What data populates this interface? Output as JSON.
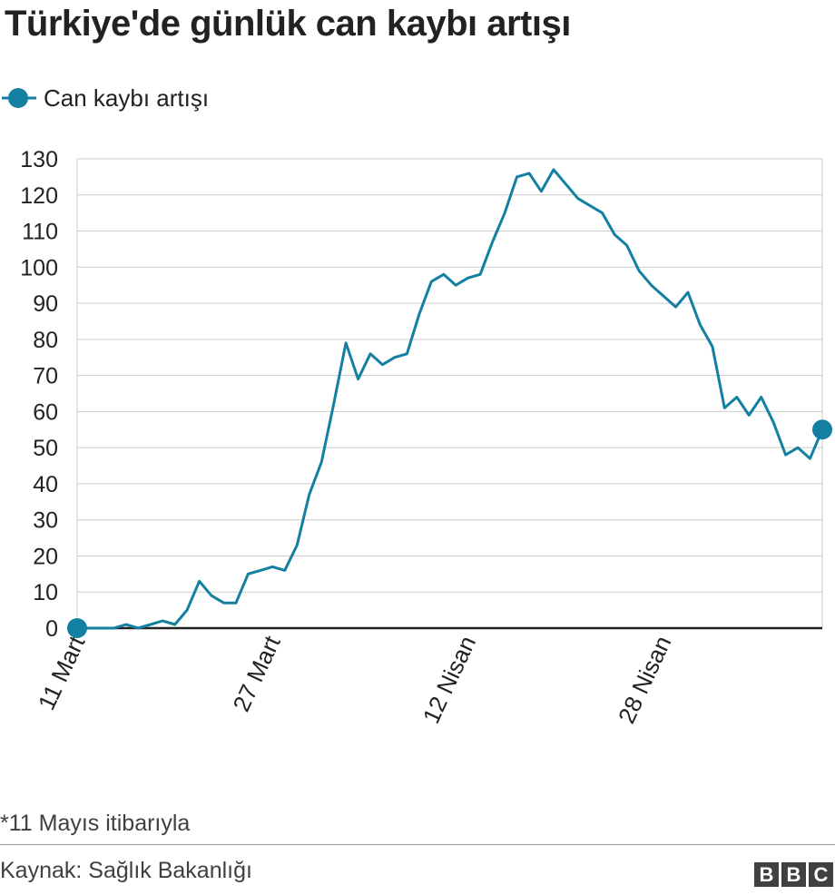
{
  "title": "Türkiye'de günlük can kaybı artışı",
  "legend": {
    "label": "Can kaybı artışı",
    "swatch_icon": "line-with-dot"
  },
  "footnote": "*11 Mayıs itibarıyla",
  "source": "Kaynak: Sağlık Bakanlığı",
  "brand": {
    "letters": [
      "B",
      "B",
      "C"
    ]
  },
  "chart_data": {
    "type": "line",
    "title": "Türkiye'de günlük can kaybı artışı",
    "xlabel": "",
    "ylabel": "",
    "ylim": [
      0,
      130
    ],
    "yticks": [
      0,
      10,
      20,
      30,
      40,
      50,
      60,
      70,
      80,
      90,
      100,
      110,
      120,
      130
    ],
    "x_start": "11 Mart",
    "x_end": "11 Mayıs",
    "x_ticks": [
      {
        "label": "11 Mart",
        "index": 0
      },
      {
        "label": "27 Mart",
        "index": 16
      },
      {
        "label": "12 Nisan",
        "index": 32
      },
      {
        "label": "28 Nisan",
        "index": 48
      }
    ],
    "grid": true,
    "legend_position": "top-left",
    "line_color": "#1380a1",
    "baseline_color": "#222222",
    "grid_color": "#cccccc",
    "series": [
      {
        "name": "Can kaybı artışı",
        "values": [
          0,
          0,
          0,
          0,
          1,
          0,
          1,
          2,
          1,
          5,
          13,
          9,
          7,
          7,
          15,
          16,
          17,
          16,
          23,
          37,
          46,
          62,
          79,
          69,
          76,
          73,
          75,
          76,
          87,
          96,
          98,
          95,
          97,
          98,
          107,
          115,
          125,
          126,
          121,
          127,
          123,
          119,
          117,
          115,
          109,
          106,
          99,
          95,
          92,
          89,
          93,
          84,
          78,
          61,
          64,
          59,
          64,
          57,
          48,
          50,
          47,
          55
        ]
      }
    ]
  }
}
